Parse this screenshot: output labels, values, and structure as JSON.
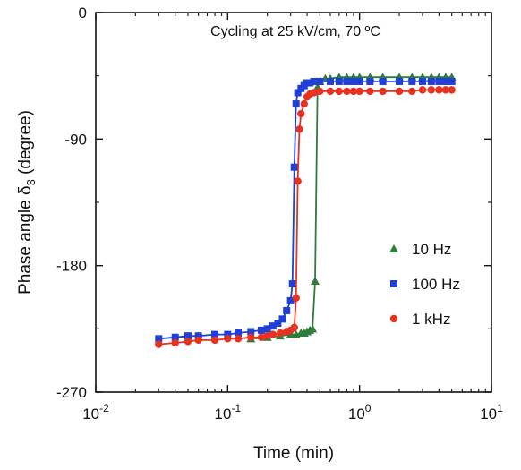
{
  "chart_data": {
    "type": "scatter",
    "annotation": "Cycling at 25 kV/cm, 70 ºC",
    "xlabel": "Time (min)",
    "ylabel": "Phase angle δ",
    "ylabel_sub": "3",
    "ylabel_unit": " (degree)",
    "x_scale": "log",
    "xlim": [
      0.01,
      10
    ],
    "ylim": [
      -270,
      0
    ],
    "x_ticks": [
      {
        "value": 0.01,
        "base": "10",
        "exp": "-2"
      },
      {
        "value": 0.1,
        "base": "10",
        "exp": "-1"
      },
      {
        "value": 1,
        "base": "10",
        "exp": "0"
      },
      {
        "value": 10,
        "base": "10",
        "exp": "1"
      }
    ],
    "y_ticks": [
      {
        "value": 0,
        "label": "0"
      },
      {
        "value": -90,
        "label": "-90"
      },
      {
        "value": -180,
        "label": "-180"
      },
      {
        "value": -270,
        "label": "-270"
      }
    ],
    "legend_position": "right-middle",
    "series": [
      {
        "name": "10 Hz",
        "color": "#2e7d3a",
        "marker": "triangle",
        "x": [
          0.15,
          0.2,
          0.25,
          0.3,
          0.33,
          0.36,
          0.38,
          0.4,
          0.42,
          0.44,
          0.46,
          0.48,
          0.5,
          0.55,
          0.6,
          0.7,
          0.8,
          0.9,
          1.0,
          1.2,
          1.5,
          2.0,
          2.5,
          3.0,
          3.5,
          4.0,
          4.5,
          5.0
        ],
        "y": [
          -232,
          -231,
          -230,
          -229,
          -229,
          -228,
          -228,
          -227,
          -226,
          -225,
          -191,
          -53,
          -49,
          -47,
          -47,
          -46,
          -46,
          -46,
          -46,
          -46,
          -46,
          -46,
          -46,
          -46,
          -46,
          -46,
          -46,
          -46
        ]
      },
      {
        "name": "100 Hz",
        "color": "#1f3fd6",
        "marker": "square",
        "x": [
          0.03,
          0.04,
          0.05,
          0.06,
          0.08,
          0.1,
          0.12,
          0.15,
          0.18,
          0.2,
          0.22,
          0.24,
          0.26,
          0.28,
          0.3,
          0.31,
          0.32,
          0.33,
          0.34,
          0.36,
          0.38,
          0.4,
          0.42,
          0.45,
          0.5,
          0.6,
          0.7,
          0.8,
          0.9,
          1.0,
          1.2,
          1.5,
          2.0,
          2.5,
          3.0,
          3.5,
          4.0,
          4.5,
          5.0
        ],
        "y": [
          -232,
          -231,
          -230,
          -230,
          -229,
          -229,
          -228,
          -227,
          -226,
          -225,
          -223,
          -221,
          -218,
          -212,
          -205,
          -193,
          -110,
          -65,
          -57,
          -54,
          -52,
          -50,
          -50,
          -49,
          -49,
          -49,
          -49,
          -49,
          -49,
          -49,
          -49,
          -49,
          -49,
          -49,
          -49,
          -49,
          -49,
          -49,
          -49
        ]
      },
      {
        "name": "1 kHz",
        "color": "#e53221",
        "marker": "circle",
        "x": [
          0.03,
          0.04,
          0.05,
          0.06,
          0.08,
          0.1,
          0.12,
          0.15,
          0.18,
          0.2,
          0.22,
          0.25,
          0.28,
          0.3,
          0.32,
          0.33,
          0.34,
          0.35,
          0.36,
          0.38,
          0.4,
          0.42,
          0.45,
          0.5,
          0.6,
          0.7,
          0.8,
          0.9,
          1.0,
          1.2,
          1.5,
          2.0,
          2.5,
          3.0,
          3.5,
          4.0,
          4.5,
          5.0
        ],
        "y": [
          -236,
          -235,
          -234,
          -233,
          -233,
          -232,
          -232,
          -231,
          -231,
          -230,
          -229,
          -228,
          -227,
          -226,
          -224,
          -203,
          -120,
          -83,
          -72,
          -65,
          -60,
          -58,
          -57,
          -56,
          -56,
          -56,
          -56,
          -56,
          -56,
          -56,
          -56,
          -56,
          -56,
          -55,
          -55,
          -55,
          -55,
          -55
        ]
      }
    ]
  }
}
